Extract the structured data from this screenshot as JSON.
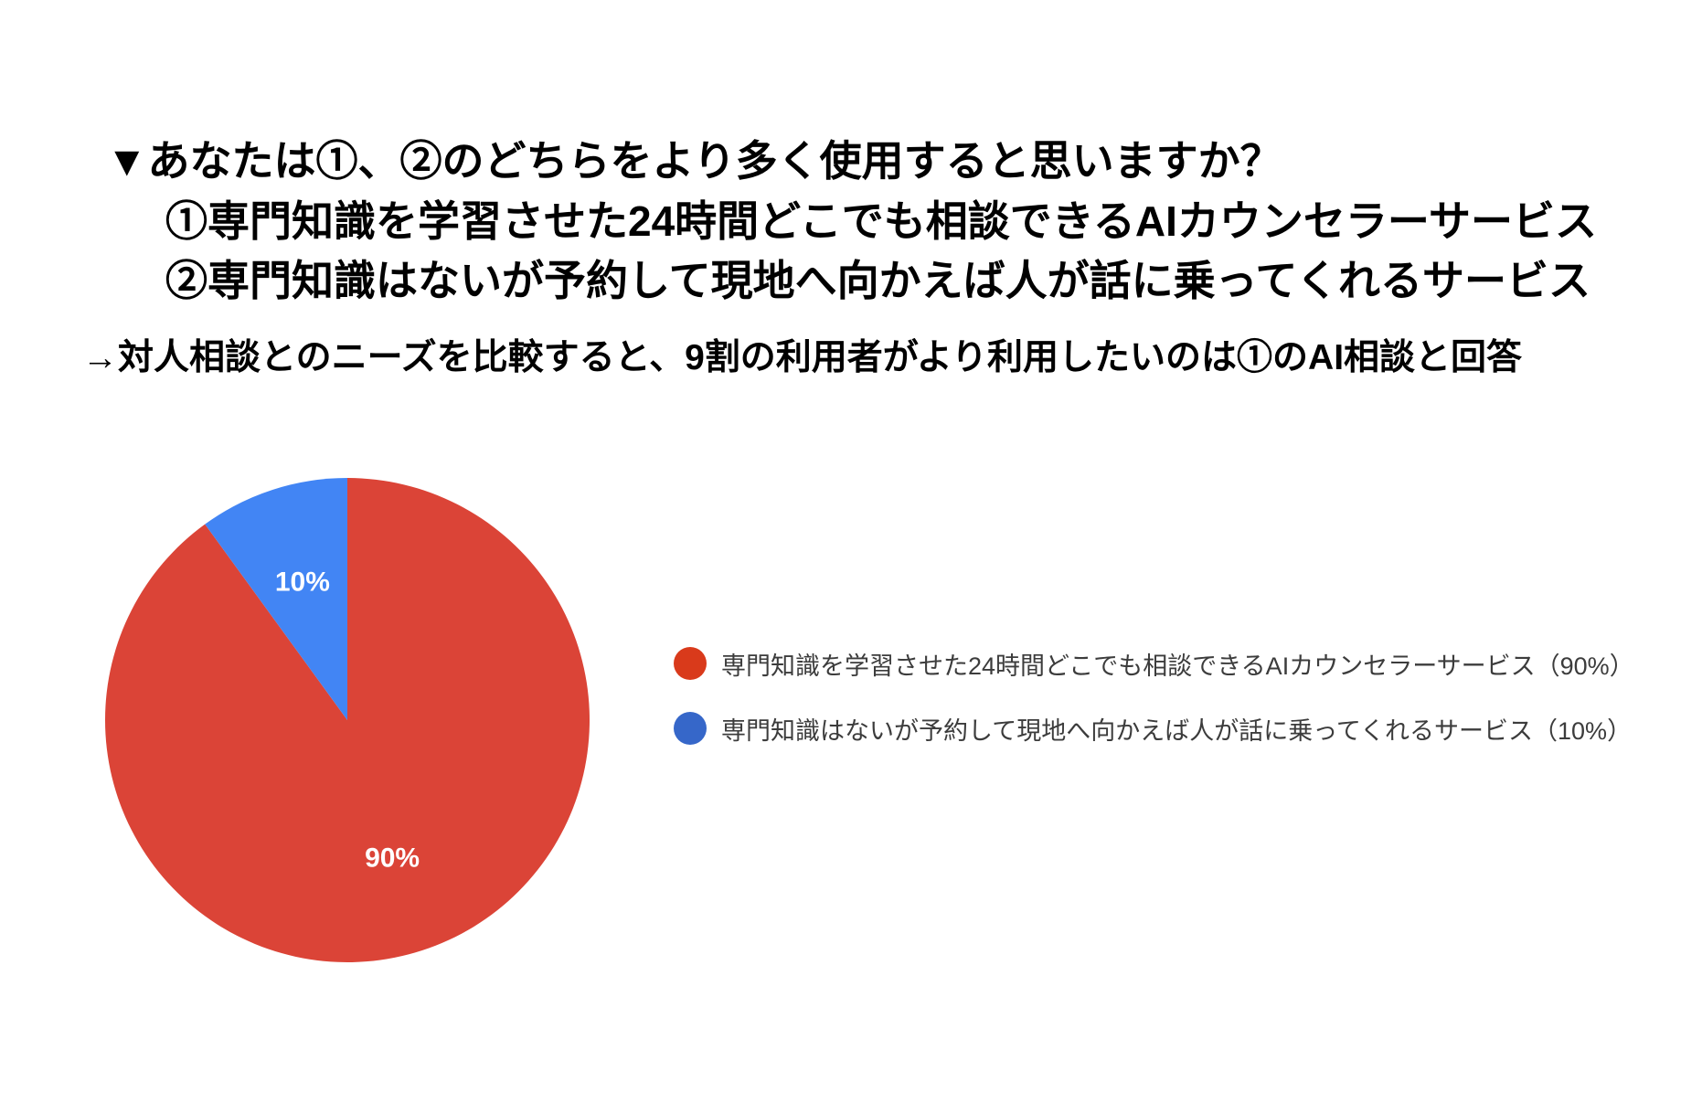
{
  "heading": {
    "question": "▼あなたは①、②のどちらをより多く使用すると思いますか？",
    "option1": "①専門知識を学習させた24時間どこでも相談できるAIカウンセラーサービス",
    "option2": "②専門知識はないが予約して現地へ向かえば人が話に乗ってくれるサービス",
    "conclusion": "→対人相談とのニーズを比較すると、9割の利用者がより利用したいのは①のAI相談と回答"
  },
  "chart_data": {
    "type": "pie",
    "start_angle_deg": 90,
    "direction": "clockwise",
    "legend_position": "right",
    "slices": [
      {
        "label": "専門知識を学習させた24時間どこでも相談できるAIカウンセラーサービス",
        "value": 90,
        "percent_label": "90%",
        "color": "#DB4437"
      },
      {
        "label": "専門知識はないが予約して現地へ向かえば人が話に乗ってくれるサービス",
        "value": 10,
        "percent_label": "10%",
        "color": "#4285F4"
      }
    ],
    "legend": [
      {
        "text": "専門知識を学習させた24時間どこでも相談できるAIカウンセラーサービス（90%）",
        "color": "#D93A1B"
      },
      {
        "text": "専門知識はないが予約して現地へ向かえば人が話に乗ってくれるサービス（10%）",
        "color": "#3667C9"
      }
    ]
  }
}
